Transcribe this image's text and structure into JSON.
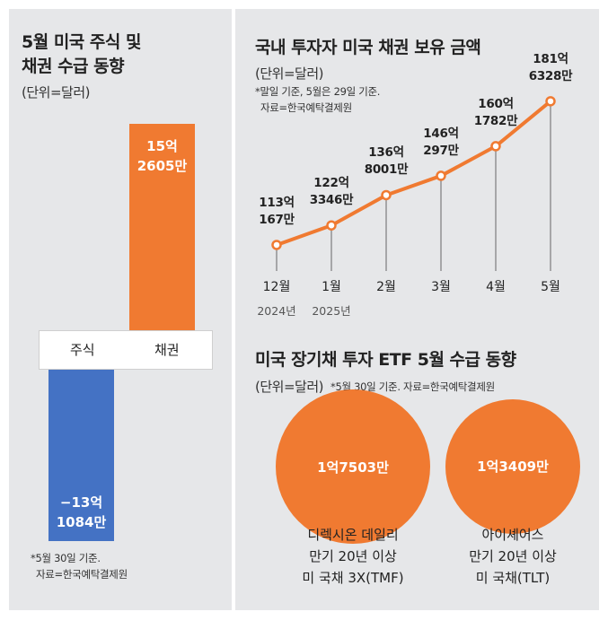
{
  "left": {
    "title_line1": "5월 미국 주식 및",
    "title_line2": "채권 수급 동향",
    "unit": "(단위=달러)",
    "note_line1": "*5월 30일 기준.",
    "note_line2": "자료=한국예탁결제원"
  },
  "right_top": {
    "title": "국내 투자자 미국 채권 보유 금액",
    "unit": "(단위=달러)",
    "note_line1": "*말일 기준, 5월은 29일 기준.",
    "note_line2": "자료=한국예탁결제원"
  },
  "right_bottom": {
    "title": "미국 장기채 투자 ETF 5월 수급 동향",
    "unit": "(단위=달러)",
    "note": "*5월 30일 기준. 자료=한국예탁결제원"
  },
  "chart_data": [
    {
      "type": "bar",
      "title": "5월 미국 주식 및 채권 수급 동향",
      "unit": "달러",
      "categories": [
        "주식",
        "채권"
      ],
      "values": [
        -1310840000,
        1526050000
      ],
      "labels": [
        {
          "line1": "−13억",
          "line2": "1084만"
        },
        {
          "line1": "15억",
          "line2": "2605만"
        }
      ],
      "colors": [
        "#4472c4",
        "#f07a31"
      ]
    },
    {
      "type": "line",
      "title": "국내 투자자 미국 채권 보유 금액",
      "unit": "달러",
      "x": [
        "12월",
        "1월",
        "2월",
        "3월",
        "4월",
        "5월"
      ],
      "x_years": [
        "2024년",
        "2025년",
        "",
        "",
        "",
        ""
      ],
      "values": [
        11301670000,
        12233460000,
        13680010000,
        14602970000,
        16017820000,
        18163280000
      ],
      "labels": [
        {
          "line1": "113억",
          "line2": "167만"
        },
        {
          "line1": "122억",
          "line2": "3346만"
        },
        {
          "line1": "136억",
          "line2": "8001만"
        },
        {
          "line1": "146억",
          "line2": "297만"
        },
        {
          "line1": "160억",
          "line2": "1782만"
        },
        {
          "line1": "181억",
          "line2": "6328만"
        }
      ],
      "color": "#f07a31"
    },
    {
      "type": "bubble",
      "title": "미국 장기채 투자 ETF 5월 수급 동향",
      "unit": "달러",
      "items": [
        {
          "label": "1억7503만",
          "value": 175030000,
          "name_lines": [
            "디렉시온 데일리",
            "만기 20년 이상",
            "미 국채 3X(TMF)"
          ]
        },
        {
          "label": "1억3409만",
          "value": 134090000,
          "name_lines": [
            "아이셰어스",
            "만기 20년 이상",
            "미 국채(TLT)"
          ]
        }
      ],
      "color": "#f07a31"
    }
  ]
}
